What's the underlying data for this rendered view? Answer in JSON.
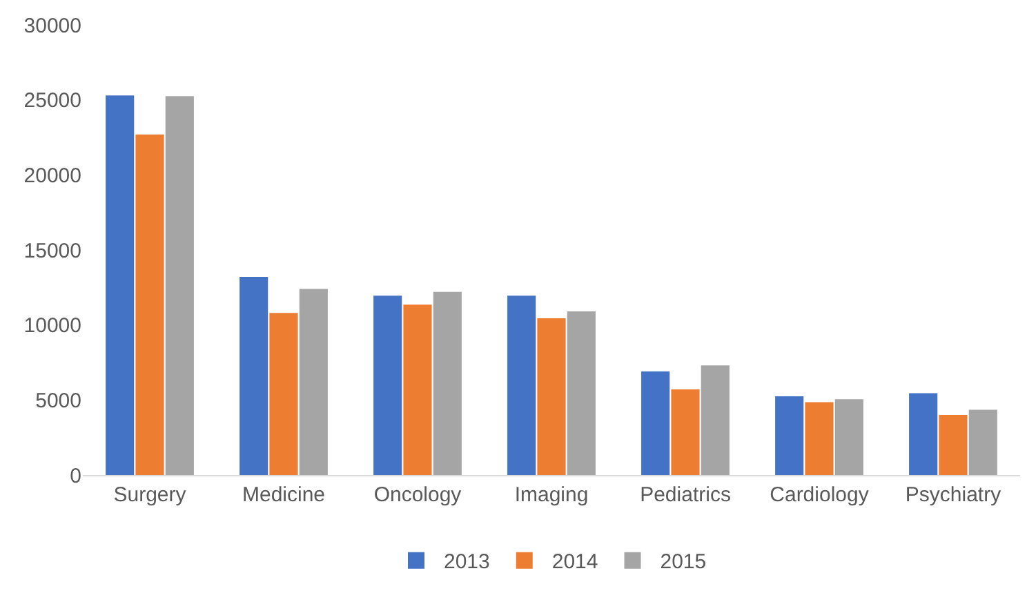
{
  "chart_data": {
    "type": "bar",
    "categories": [
      "Surgery",
      "Medicine",
      "Oncology",
      "Imaging",
      "Pediatrics",
      "Cardiology",
      "Psychiatry"
    ],
    "series": [
      {
        "name": "2013",
        "color": "#4472c4",
        "values": [
          25300,
          13200,
          11950,
          11950,
          6900,
          5250,
          5450
        ]
      },
      {
        "name": "2014",
        "color": "#ed7d31",
        "values": [
          22700,
          10800,
          11350,
          10450,
          5700,
          4850,
          4000
        ]
      },
      {
        "name": "2015",
        "color": "#a5a5a5",
        "values": [
          25250,
          12400,
          12200,
          10900,
          7300,
          5050,
          4350
        ]
      }
    ],
    "ylim": [
      0,
      30000
    ],
    "yticks": [
      0,
      5000,
      10000,
      15000,
      20000,
      25000,
      30000
    ],
    "grid": false,
    "legend": "bottom"
  }
}
